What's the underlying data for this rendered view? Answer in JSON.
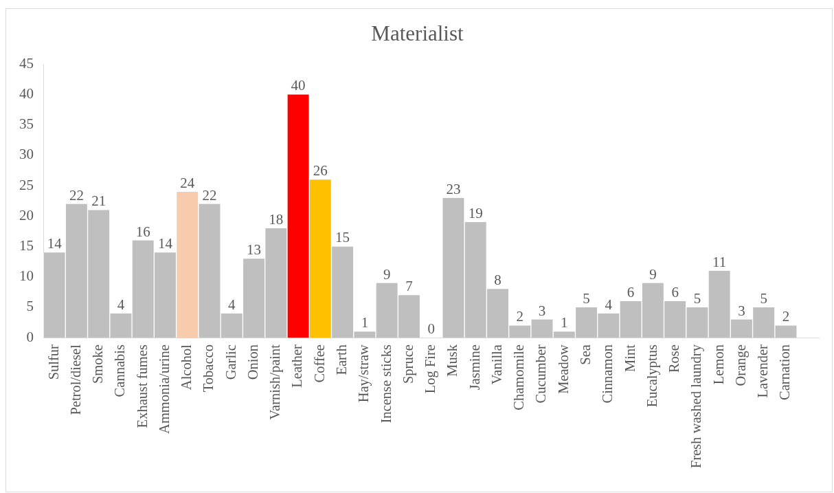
{
  "chart_data": {
    "type": "bar",
    "title": "Materialist",
    "categories": [
      "Sulfur",
      "Petrol/diesel",
      "Smoke",
      "Cannabis",
      "Exhaust fumes",
      "Ammonia/urine",
      "Alcohol",
      "Tobacco",
      "Garlic",
      "Onion",
      "Varnish/paint",
      "Leather",
      "Coffee",
      "Earth",
      "Hay/straw",
      "Incense sticks",
      "Spruce",
      "Log Fire",
      "Musk",
      "Jasmine",
      "Vanilla",
      "Chamomile",
      "Cucumber",
      "Meadow",
      "Sea",
      "Cinnamon",
      "Mint",
      "Eucalyptus",
      "Rose",
      "Fresh washed laundry",
      "Lemon",
      "Orange",
      "Lavender",
      "Carnation",
      null
    ],
    "values": [
      14,
      22,
      21,
      4,
      16,
      14,
      24,
      22,
      4,
      13,
      18,
      40,
      26,
      15,
      1,
      9,
      7,
      0,
      23,
      19,
      8,
      2,
      3,
      1,
      5,
      4,
      6,
      9,
      6,
      5,
      11,
      3,
      5,
      2,
      null
    ],
    "colors": [
      "#bfbfbf",
      "#bfbfbf",
      "#bfbfbf",
      "#bfbfbf",
      "#bfbfbf",
      "#bfbfbf",
      "#f8cbad",
      "#bfbfbf",
      "#bfbfbf",
      "#bfbfbf",
      "#bfbfbf",
      "#ff0000",
      "#ffc000",
      "#bfbfbf",
      "#bfbfbf",
      "#bfbfbf",
      "#bfbfbf",
      "#bfbfbf",
      "#bfbfbf",
      "#bfbfbf",
      "#bfbfbf",
      "#bfbfbf",
      "#bfbfbf",
      "#bfbfbf",
      "#bfbfbf",
      "#bfbfbf",
      "#bfbfbf",
      "#bfbfbf",
      "#bfbfbf",
      "#bfbfbf",
      "#bfbfbf",
      "#bfbfbf",
      "#bfbfbf",
      "#bfbfbf",
      "#bfbfbf"
    ],
    "ylim": [
      0,
      45
    ],
    "yticks": [
      0,
      5,
      10,
      15,
      20,
      25,
      30,
      35,
      40,
      45
    ],
    "grid": false,
    "data_labels": true
  }
}
